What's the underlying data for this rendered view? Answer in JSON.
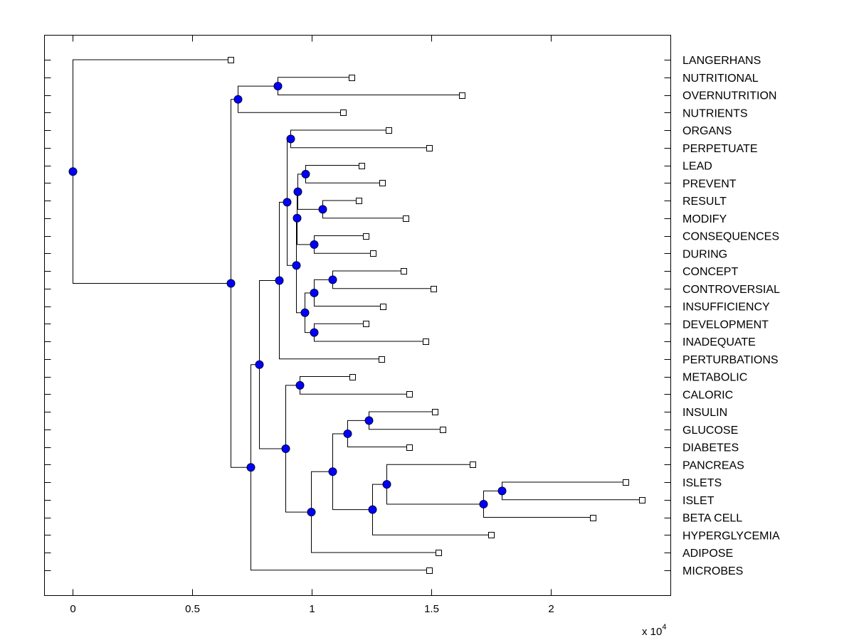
{
  "chart_data": {
    "type": "dendrogram",
    "title": "",
    "xlabel": "",
    "ylabel": "",
    "x_scale_multiplier_label": "x 10",
    "x_scale_exponent": "4",
    "xlim": [
      -0.12,
      2.5
    ],
    "xticks": [
      0,
      0.5,
      1,
      1.5,
      2
    ],
    "xtick_labels": [
      "0",
      "0.5",
      "1",
      "1.5",
      "2"
    ],
    "grid": false,
    "node_color": "#0000ff",
    "leaves": [
      {
        "id": "LANGERHANS",
        "label": "LANGERHANS",
        "x": 0.661
      },
      {
        "id": "NUTRITIONAL",
        "label": "NUTRITIONAL",
        "x": 1.167
      },
      {
        "id": "OVERNUTRITION",
        "label": "OVERNUTRITION",
        "x": 1.628
      },
      {
        "id": "NUTRIENTS",
        "label": "NUTRIENTS",
        "x": 1.131
      },
      {
        "id": "ORGANS",
        "label": "ORGANS",
        "x": 1.321
      },
      {
        "id": "PERPETUATE",
        "label": "PERPETUATE",
        "x": 1.491
      },
      {
        "id": "LEAD",
        "label": "LEAD",
        "x": 1.208
      },
      {
        "id": "PREVENT",
        "label": "PREVENT",
        "x": 1.295
      },
      {
        "id": "RESULT",
        "label": "RESULT",
        "x": 1.196
      },
      {
        "id": "MODIFY",
        "label": "MODIFY",
        "x": 1.393
      },
      {
        "id": "CONSEQUENCES",
        "label": "CONSEQUENCES",
        "x": 1.226
      },
      {
        "id": "DURING",
        "label": "DURING",
        "x": 1.256
      },
      {
        "id": "CONCEPT",
        "label": "CONCEPT",
        "x": 1.384
      },
      {
        "id": "CONTROVERSIAL",
        "label": "CONTROVERSIAL",
        "x": 1.509
      },
      {
        "id": "INSUFFICIENCY",
        "label": "INSUFFICIENCY",
        "x": 1.298
      },
      {
        "id": "DEVELOPMENT",
        "label": "DEVELOPMENT",
        "x": 1.226
      },
      {
        "id": "INADEQUATE",
        "label": "INADEQUATE",
        "x": 1.476
      },
      {
        "id": "PERTURBATIONS",
        "label": "PERTURBATIONS",
        "x": 1.292
      },
      {
        "id": "METABOLIC",
        "label": "METABOLIC",
        "x": 1.17
      },
      {
        "id": "CALORIC",
        "label": "CALORIC",
        "x": 1.408
      },
      {
        "id": "INSULIN",
        "label": "INSULIN",
        "x": 1.515
      },
      {
        "id": "GLUCOSE",
        "label": "GLUCOSE",
        "x": 1.548
      },
      {
        "id": "DIABETES",
        "label": "DIABETES",
        "x": 1.408
      },
      {
        "id": "PANCREAS",
        "label": "PANCREAS",
        "x": 1.673
      },
      {
        "id": "ISLETS",
        "label": "ISLETS",
        "x": 2.313
      },
      {
        "id": "ISLET",
        "label": "ISLET",
        "x": 2.381
      },
      {
        "id": "BETA_CELL",
        "label": "BETA CELL",
        "x": 2.176
      },
      {
        "id": "HYPERGLYCEMIA",
        "label": "HYPERGLYCEMIA",
        "x": 1.75
      },
      {
        "id": "ADIPOSE",
        "label": "ADIPOSE",
        "x": 1.53
      },
      {
        "id": "MICROBES",
        "label": "MICROBES",
        "x": 1.491
      }
    ],
    "nodes": [
      {
        "id": "n_nutr",
        "x": 0.857,
        "children": [
          "NUTRITIONAL",
          "OVERNUTRITION"
        ]
      },
      {
        "id": "n_nutr2",
        "x": 0.69,
        "children": [
          "n_nutr",
          "NUTRIENTS"
        ]
      },
      {
        "id": "n_organs",
        "x": 0.911,
        "children": [
          "ORGANS",
          "PERPETUATE"
        ]
      },
      {
        "id": "n_lead",
        "x": 0.973,
        "children": [
          "LEAD",
          "PREVENT"
        ]
      },
      {
        "id": "n_result",
        "x": 1.045,
        "children": [
          "RESULT",
          "MODIFY"
        ]
      },
      {
        "id": "n_lead_result",
        "x": 0.94,
        "children": [
          "n_lead",
          "n_result"
        ]
      },
      {
        "id": "n_conseq",
        "x": 1.009,
        "children": [
          "CONSEQUENCES",
          "DURING"
        ]
      },
      {
        "id": "n_mid1",
        "x": 0.938,
        "children": [
          "n_lead_result",
          "n_conseq"
        ]
      },
      {
        "id": "n_concept",
        "x": 1.086,
        "children": [
          "CONCEPT",
          "CONTROVERSIAL"
        ]
      },
      {
        "id": "n_concept2",
        "x": 1.009,
        "children": [
          "n_concept",
          "INSUFFICIENCY"
        ]
      },
      {
        "id": "n_devel",
        "x": 1.009,
        "children": [
          "DEVELOPMENT",
          "INADEQUATE"
        ]
      },
      {
        "id": "n_concept3",
        "x": 0.97,
        "children": [
          "n_concept2",
          "n_devel"
        ]
      },
      {
        "id": "n_mid2",
        "x": 0.935,
        "children": [
          "n_mid1",
          "n_concept3"
        ]
      },
      {
        "id": "n_mid3",
        "x": 0.896,
        "children": [
          "n_organs",
          "n_mid2"
        ]
      },
      {
        "id": "n_pert",
        "x": 0.863,
        "children": [
          "n_mid3",
          "PERTURBATIONS"
        ]
      },
      {
        "id": "n_metab",
        "x": 0.949,
        "children": [
          "METABOLIC",
          "CALORIC"
        ]
      },
      {
        "id": "n_insulin",
        "x": 1.238,
        "children": [
          "INSULIN",
          "GLUCOSE"
        ]
      },
      {
        "id": "n_diab",
        "x": 1.149,
        "children": [
          "n_insulin",
          "DIABETES"
        ]
      },
      {
        "id": "n_islets",
        "x": 1.795,
        "children": [
          "ISLETS",
          "ISLET"
        ]
      },
      {
        "id": "n_beta",
        "x": 1.717,
        "children": [
          "n_islets",
          "BETA_CELL"
        ]
      },
      {
        "id": "n_panc",
        "x": 1.313,
        "children": [
          "PANCREAS",
          "n_beta"
        ]
      },
      {
        "id": "n_hyper",
        "x": 1.253,
        "children": [
          "n_panc",
          "HYPERGLYCEMIA"
        ]
      },
      {
        "id": "n_diab2",
        "x": 1.086,
        "children": [
          "n_diab",
          "n_hyper"
        ]
      },
      {
        "id": "n_adip",
        "x": 0.997,
        "children": [
          "n_diab2",
          "ADIPOSE"
        ]
      },
      {
        "id": "n_low",
        "x": 0.89,
        "children": [
          "n_metab",
          "n_adip"
        ]
      },
      {
        "id": "n_big",
        "x": 0.78,
        "children": [
          "n_pert",
          "n_low"
        ]
      },
      {
        "id": "n_microbes",
        "x": 0.744,
        "children": [
          "n_big",
          "MICROBES"
        ]
      },
      {
        "id": "n_root2",
        "x": 0.661,
        "children": [
          "n_nutr2",
          "n_microbes"
        ]
      },
      {
        "id": "n_root",
        "x": 0.0,
        "children": [
          "LANGERHANS",
          "n_root2"
        ]
      }
    ]
  }
}
